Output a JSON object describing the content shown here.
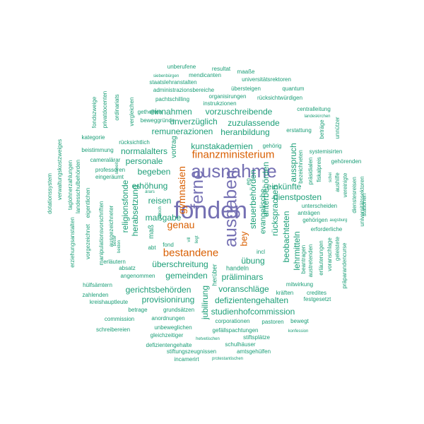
{
  "colors": {
    "small": "#1b9e77",
    "medium": "#d95f02",
    "large": "#7570b3"
  },
  "words": [
    {
      "text": "fonden",
      "weight": 10
    },
    {
      "text": "ausnahme",
      "weight": 8
    },
    {
      "text": "ausgaben",
      "weight": 8
    },
    {
      "text": "ferne",
      "weight": 7
    },
    {
      "text": "finanzministerium",
      "weight": 5
    },
    {
      "text": "bestandene",
      "weight": 5
    },
    {
      "text": "gymnasien",
      "weight": 5
    },
    {
      "text": "genau",
      "weight": 5
    },
    {
      "text": "bey",
      "weight": 4
    },
    {
      "text": "kunstakademien",
      "weight": 3
    },
    {
      "text": "maßgabe",
      "weight": 3
    },
    {
      "text": "überschreitung",
      "weight": 3
    },
    {
      "text": "erhöhung",
      "weight": 3
    },
    {
      "text": "reisen",
      "weight": 3
    },
    {
      "text": "herabsetzung",
      "weight": 3
    },
    {
      "text": "dienstposten",
      "weight": 3
    },
    {
      "text": "rücksprachen",
      "weight": 3
    },
    {
      "text": "steuerbehörden",
      "weight": 3
    },
    {
      "text": "unterbehörden",
      "weight": 3
    },
    {
      "text": "defizientengehalten",
      "weight": 3
    },
    {
      "text": "studienhofcommission",
      "weight": 3
    },
    {
      "text": "präliminars",
      "weight": 3
    },
    {
      "text": "voranschläge",
      "weight": 3
    },
    {
      "text": "provisionirung",
      "weight": 3
    },
    {
      "text": "gerichtsbehörden",
      "weight": 3
    },
    {
      "text": "gemeinden",
      "weight": 3
    },
    {
      "text": "beobachteten",
      "weight": 3
    },
    {
      "text": "lehrmitteln",
      "weight": 3
    },
    {
      "text": "evangelische",
      "weight": 3
    },
    {
      "text": "einkünfte",
      "weight": 3
    },
    {
      "text": "ausspruch",
      "weight": 3
    },
    {
      "text": "religionsfonde",
      "weight": 3
    },
    {
      "text": "heranbildung",
      "weight": 3
    },
    {
      "text": "zuzulassende",
      "weight": 3
    },
    {
      "text": "unverzüglich",
      "weight": 3
    },
    {
      "text": "vorzuschreibende",
      "weight": 3
    },
    {
      "text": "einnahmen",
      "weight": 3
    },
    {
      "text": "remunerazionen",
      "weight": 3
    },
    {
      "text": "normalalters",
      "weight": 3
    },
    {
      "text": "personale",
      "weight": 3
    },
    {
      "text": "begeben",
      "weight": 3
    },
    {
      "text": "übung",
      "weight": 3
    },
    {
      "text": "jubilirung",
      "weight": 3
    },
    {
      "text": "vortrag",
      "weight": 2
    },
    {
      "text": "handeln",
      "weight": 2
    },
    {
      "text": "getheilten",
      "weight": 2
    },
    {
      "text": "beweggründe",
      "weight": 2
    },
    {
      "text": "pachtschilling",
      "weight": 2
    },
    {
      "text": "instrukzionen",
      "weight": 2
    },
    {
      "text": "administrazionsbereiche",
      "weight": 2
    },
    {
      "text": "übersteigen",
      "weight": 2
    },
    {
      "text": "quantum",
      "weight": 2
    },
    {
      "text": "organisirungen",
      "weight": 2
    },
    {
      "text": "rücksichtwürdigen",
      "weight": 2
    },
    {
      "text": "staatslehranstalten",
      "weight": 2
    },
    {
      "text": "universitätsrektoren",
      "weight": 2
    },
    {
      "text": "siebenbürgen",
      "weight": 1
    },
    {
      "text": "mendicanten",
      "weight": 2
    },
    {
      "text": "maaße",
      "weight": 2
    },
    {
      "text": "resultat",
      "weight": 2
    },
    {
      "text": "unberufene",
      "weight": 2
    },
    {
      "text": "centralleitung",
      "weight": 2
    },
    {
      "text": "erstattung",
      "weight": 2
    },
    {
      "text": "gehörig",
      "weight": 2
    },
    {
      "text": "systemisirten",
      "weight": 2
    },
    {
      "text": "gehörenden",
      "weight": 2
    },
    {
      "text": "unterscheiden",
      "weight": 2
    },
    {
      "text": "anträgen",
      "weight": 2
    },
    {
      "text": "gehörigen",
      "weight": 2
    },
    {
      "text": "erforderliche",
      "weight": 2
    },
    {
      "text": "incl",
      "weight": 2
    },
    {
      "text": "kräften",
      "weight": 2
    },
    {
      "text": "credites",
      "weight": 2
    },
    {
      "text": "festgesetzt",
      "weight": 2
    },
    {
      "text": "mitwirkung",
      "weight": 2
    },
    {
      "text": "corporationen",
      "weight": 2
    },
    {
      "text": "pastoren",
      "weight": 2
    },
    {
      "text": "bewegt",
      "weight": 2
    },
    {
      "text": "konfession",
      "weight": 1
    },
    {
      "text": "gefällspachtungen",
      "weight": 2
    },
    {
      "text": "stiftsplätze",
      "weight": 2
    },
    {
      "text": "schulhäuser",
      "weight": 2
    },
    {
      "text": "amtsgehülfen",
      "weight": 2
    },
    {
      "text": "stiftungszeugnissen",
      "weight": 2
    },
    {
      "text": "protestantischen",
      "weight": 1
    },
    {
      "text": "incamerirt",
      "weight": 2
    },
    {
      "text": "defizientengehalte",
      "weight": 2
    },
    {
      "text": "gleichzeitiger",
      "weight": 2
    },
    {
      "text": "hetvetischen",
      "weight": 1
    },
    {
      "text": "unbeweglichen",
      "weight": 2
    },
    {
      "text": "anordnungen",
      "weight": 2
    },
    {
      "text": "schreibereien",
      "weight": 2
    },
    {
      "text": "commission",
      "weight": 2
    },
    {
      "text": "grundsätzen",
      "weight": 2
    },
    {
      "text": "betrage",
      "weight": 2
    },
    {
      "text": "kreishauptleute",
      "weight": 2
    },
    {
      "text": "zahlenden",
      "weight": 2
    },
    {
      "text": "hülfsämtern",
      "weight": 2
    },
    {
      "text": "angenommen",
      "weight": 2
    },
    {
      "text": "absatz",
      "weight": 2
    },
    {
      "text": "erläutern",
      "weight": 2
    },
    {
      "text": "fond",
      "weight": 2
    },
    {
      "text": "abt",
      "weight": 2
    },
    {
      "text": "maß",
      "weight": 3
    },
    {
      "text": "jedoch",
      "weight": 1
    },
    {
      "text": "ärars",
      "weight": 1
    },
    {
      "text": "vill",
      "weight": 1
    },
    {
      "text": "liegt",
      "weight": 1
    },
    {
      "text": "herüber",
      "weight": 2
    },
    {
      "text": "cameralärar",
      "weight": 2
    },
    {
      "text": "professoren",
      "weight": 2
    },
    {
      "text": "eingeräumt",
      "weight": 2
    },
    {
      "text": "beistimmung",
      "weight": 2
    },
    {
      "text": "rücksichtlich",
      "weight": 2
    },
    {
      "text": "kategorie",
      "weight": 2
    },
    {
      "text": "fondszweige",
      "weight": 2
    },
    {
      "text": "privatdocenten",
      "weight": 2
    },
    {
      "text": "ordinariats",
      "weight": 2
    },
    {
      "text": "vergleichen",
      "weight": 2
    },
    {
      "text": "dotationssystem",
      "weight": 2
    },
    {
      "text": "verwaltungskostzweiges",
      "weight": 2
    },
    {
      "text": "taglohnerzahlungen",
      "weight": 2
    },
    {
      "text": "landesschulbehörden",
      "weight": 2
    },
    {
      "text": "erziehungsanstalten",
      "weight": 2
    },
    {
      "text": "vorgezeichnet",
      "weight": 2
    },
    {
      "text": "eigentlichen",
      "weight": 2
    },
    {
      "text": "manipulationsvorschriften",
      "weight": 2
    },
    {
      "text": "ausgezeichneter",
      "weight": 2
    },
    {
      "text": "soweit",
      "weight": 1
    },
    {
      "text": "beste",
      "weight": 1
    },
    {
      "text": "beiden",
      "weight": 1
    },
    {
      "text": "en",
      "weight": 2
    },
    {
      "text": "bezeichneten",
      "weight": 2
    },
    {
      "text": "präsidialen",
      "weight": 2
    },
    {
      "text": "fiskalpreis",
      "weight": 2
    },
    {
      "text": "beträge",
      "weight": 2
    },
    {
      "text": "unnützer",
      "weight": 2
    },
    {
      "text": "landeskirchen",
      "weight": 1
    },
    {
      "text": "augsburg",
      "weight": 1
    },
    {
      "text": "schei",
      "weight": 1
    },
    {
      "text": "aushilfe",
      "weight": 2
    },
    {
      "text": "vereinigte",
      "weight": 2
    },
    {
      "text": "dienstesreisen",
      "weight": 2
    },
    {
      "text": "stationen",
      "weight": 2
    },
    {
      "text": "universitätssektoren",
      "weight": 2
    },
    {
      "text": "erläuterungen",
      "weight": 2
    },
    {
      "text": "voranschlage",
      "weight": 2
    },
    {
      "text": "geleistete",
      "weight": 2
    },
    {
      "text": "präparandencurse",
      "weight": 2
    },
    {
      "text": "beantragen",
      "weight": 2
    },
    {
      "text": "austretenden",
      "weight": 2
    }
  ]
}
